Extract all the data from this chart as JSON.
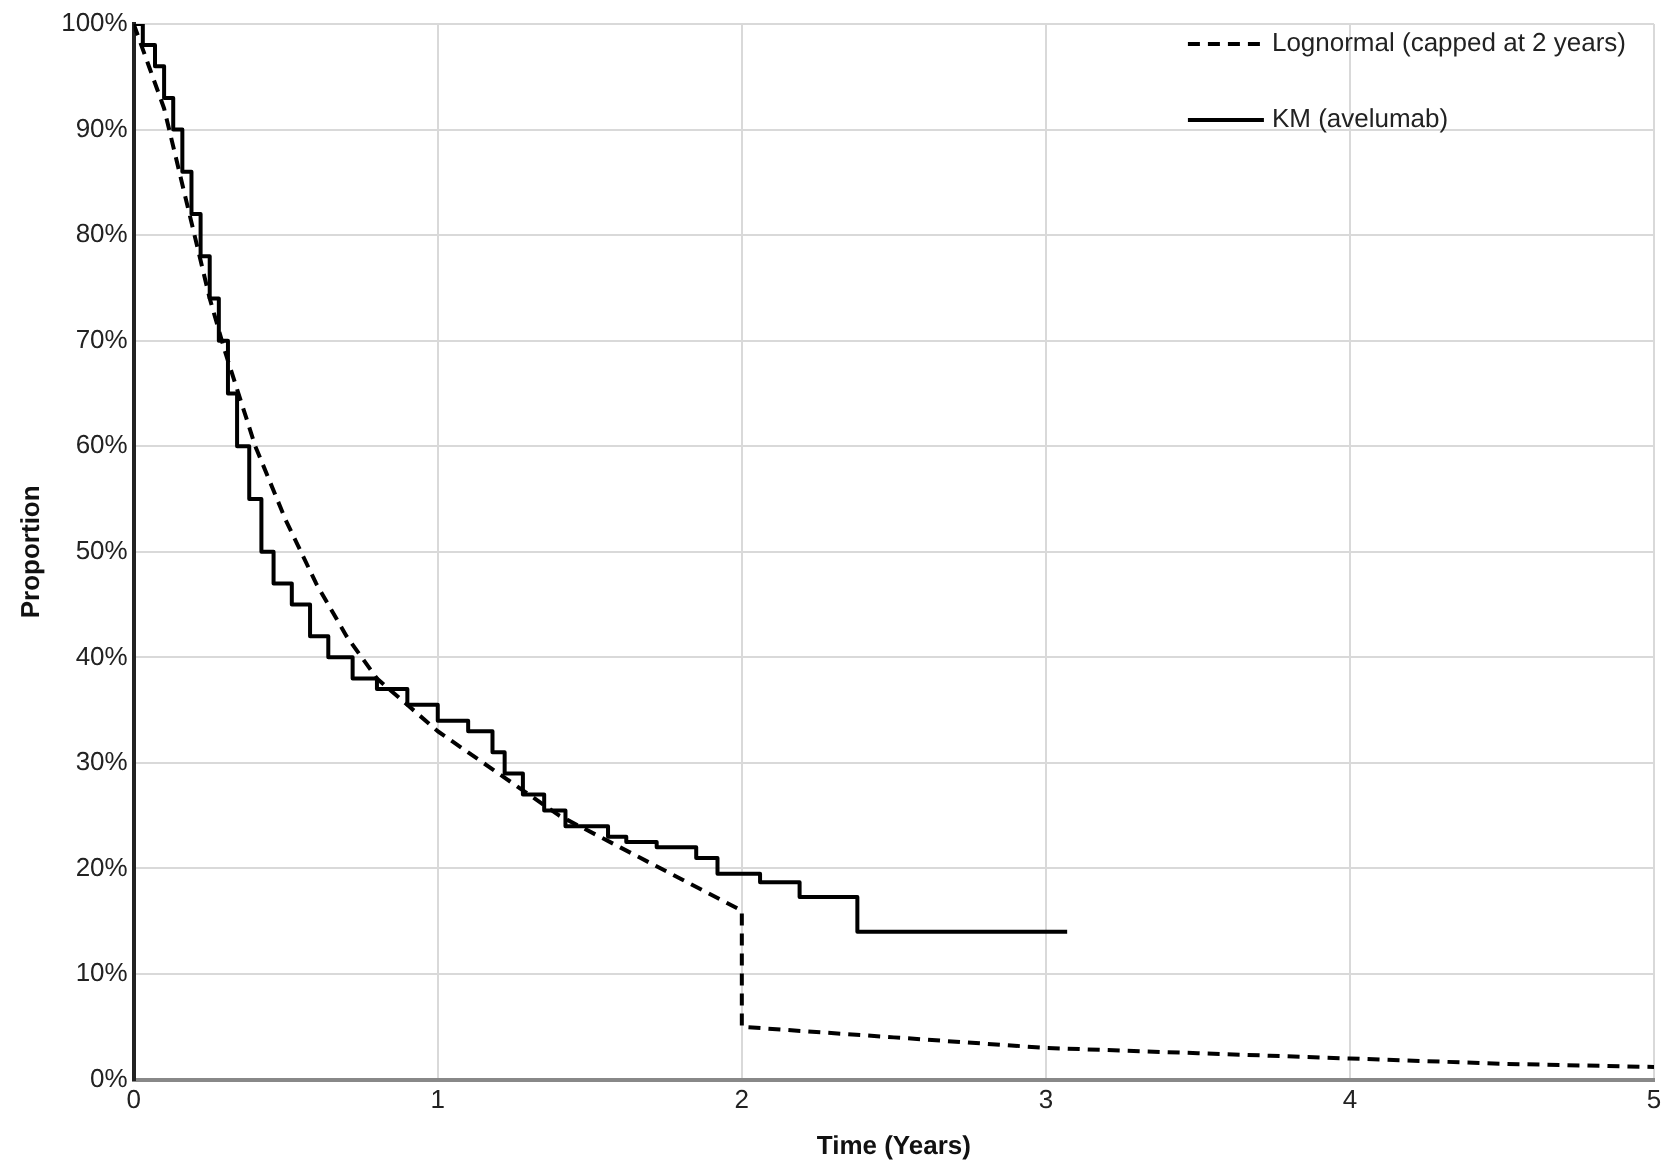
{
  "chart_data": {
    "type": "line",
    "xlabel": "Time (Years)",
    "ylabel": "Proportion",
    "xlim": [
      0,
      5
    ],
    "xticks": [
      0,
      1,
      2,
      3,
      4,
      5
    ],
    "ylim": [
      0,
      100
    ],
    "yticks": [
      {
        "value": 0,
        "label": "0%"
      },
      {
        "value": 10,
        "label": "10%"
      },
      {
        "value": 20,
        "label": "20%"
      },
      {
        "value": 30,
        "label": "30%"
      },
      {
        "value": 40,
        "label": "40%"
      },
      {
        "value": 50,
        "label": "50%"
      },
      {
        "value": 60,
        "label": "60%"
      },
      {
        "value": 70,
        "label": "70%"
      },
      {
        "value": 80,
        "label": "80%"
      },
      {
        "value": 90,
        "label": "90%"
      },
      {
        "value": 100,
        "label": "100%"
      }
    ],
    "grid": true,
    "legend": "top right",
    "marker": "none",
    "series": [
      {
        "name": "Lognormal (capped at 2 years)",
        "color": "#000000",
        "type": "line",
        "line_style": "dashed",
        "x": [
          0,
          0.05,
          0.1,
          0.15,
          0.2,
          0.25,
          0.3,
          0.4,
          0.5,
          0.6,
          0.7,
          0.8,
          0.9,
          1.0,
          1.2,
          1.4,
          1.6,
          1.8,
          2.0,
          2.0,
          2.5,
          3.0,
          3.5,
          4.0,
          4.5,
          5.0
        ],
        "values": [
          100,
          96,
          92,
          86,
          80,
          74,
          69,
          60,
          53,
          47,
          42,
          38,
          35.5,
          33,
          29,
          25,
          22,
          19,
          16,
          5,
          4,
          3,
          2.5,
          2,
          1.5,
          1.2
        ]
      },
      {
        "name": "KM (avelumab)",
        "color": "#000000",
        "type": "step",
        "line_style": "solid",
        "x": [
          0,
          0.03,
          0.07,
          0.1,
          0.13,
          0.16,
          0.19,
          0.22,
          0.25,
          0.28,
          0.31,
          0.34,
          0.38,
          0.42,
          0.46,
          0.52,
          0.58,
          0.64,
          0.72,
          0.8,
          0.9,
          1.0,
          1.1,
          1.18,
          1.22,
          1.28,
          1.35,
          1.42,
          1.56,
          1.62,
          1.72,
          1.85,
          1.92,
          2.06,
          2.19,
          2.38,
          3.07
        ],
        "values": [
          100,
          98,
          96,
          93,
          90,
          86,
          82,
          78,
          74,
          70,
          65,
          60,
          55,
          50,
          47,
          45,
          42,
          40,
          38,
          37,
          35.5,
          34,
          33,
          31,
          29,
          27,
          25.5,
          24,
          23,
          22.5,
          22,
          21,
          19.5,
          18.7,
          17.3,
          14,
          14
        ]
      }
    ]
  }
}
